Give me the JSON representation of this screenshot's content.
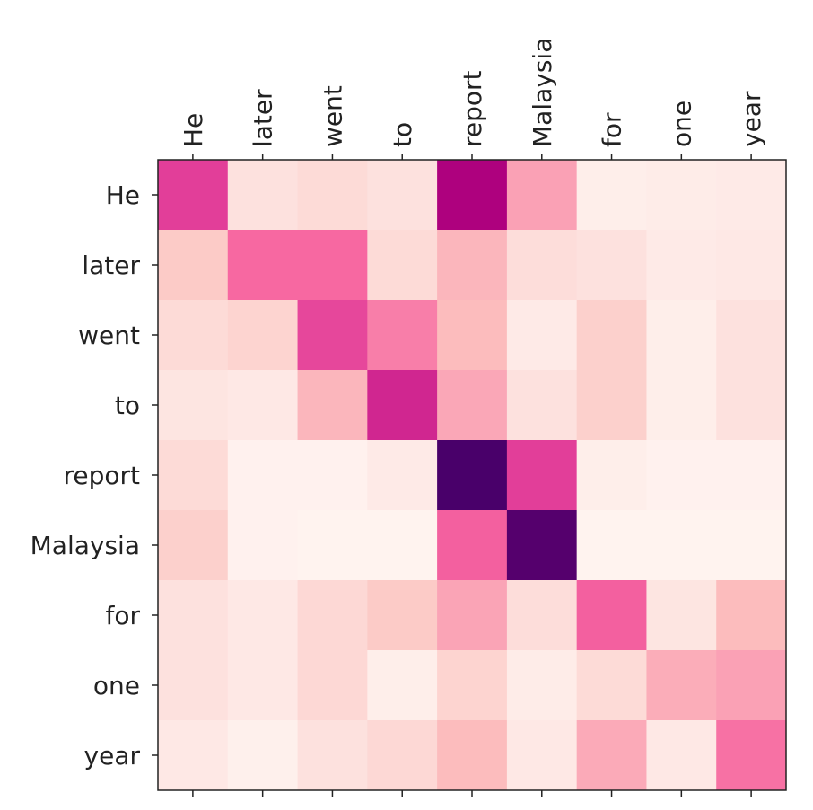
{
  "chart_data": {
    "type": "heatmap",
    "colormap": "RdPu",
    "x_labels": [
      "He",
      "later",
      "went",
      "to",
      "report",
      "Malaysia",
      "for",
      "one",
      "year"
    ],
    "y_labels": [
      "He",
      "later",
      "went",
      "to",
      "report",
      "Malaysia",
      "for",
      "one",
      "year"
    ],
    "x_labels_position": "top",
    "values": [
      [
        0.6,
        0.12,
        0.15,
        0.12,
        0.75,
        0.37,
        0.05,
        0.06,
        0.07
      ],
      [
        0.22,
        0.5,
        0.5,
        0.15,
        0.3,
        0.14,
        0.12,
        0.07,
        0.08
      ],
      [
        0.15,
        0.18,
        0.58,
        0.45,
        0.28,
        0.07,
        0.2,
        0.05,
        0.12
      ],
      [
        0.1,
        0.08,
        0.3,
        0.66,
        0.35,
        0.12,
        0.2,
        0.05,
        0.12
      ],
      [
        0.15,
        0.03,
        0.03,
        0.07,
        1.0,
        0.6,
        0.05,
        0.03,
        0.03
      ],
      [
        0.2,
        0.03,
        0.02,
        0.02,
        0.52,
        0.97,
        0.02,
        0.02,
        0.02
      ],
      [
        0.12,
        0.08,
        0.16,
        0.22,
        0.36,
        0.14,
        0.52,
        0.1,
        0.28
      ],
      [
        0.12,
        0.08,
        0.16,
        0.05,
        0.18,
        0.06,
        0.15,
        0.33,
        0.37
      ],
      [
        0.08,
        0.04,
        0.12,
        0.16,
        0.28,
        0.08,
        0.34,
        0.08,
        0.48
      ]
    ],
    "grid": false,
    "legend": "none"
  }
}
